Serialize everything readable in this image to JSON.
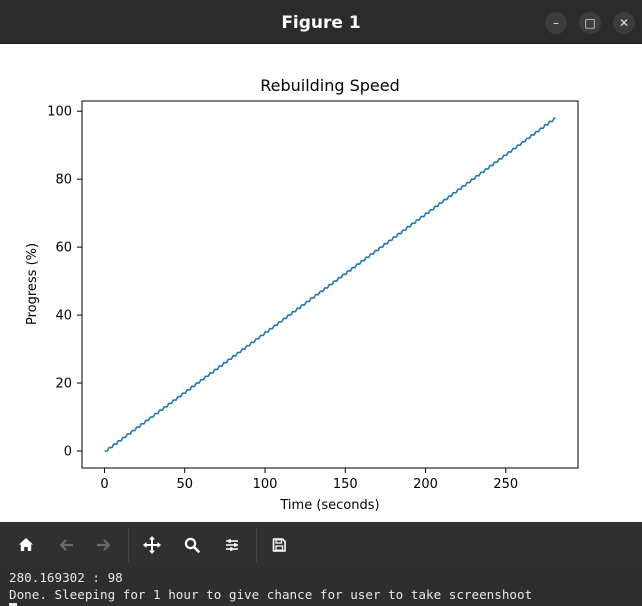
{
  "window": {
    "title": "Figure 1",
    "minimize_glyph": "–",
    "maximize_glyph": "□",
    "close_glyph": "✕"
  },
  "toolbar": {
    "icons": [
      "home-icon",
      "back-arrow-icon",
      "forward-arrow-icon",
      "pan-icon",
      "zoom-icon",
      "configure-subplots-icon",
      "save-icon"
    ],
    "icon_color": "#ffffff",
    "disabled_color": "#6a6a6a"
  },
  "terminal": {
    "line1": "280.169302 : 98",
    "line2": "Done. Sleeping for 1 hour to give chance for user to take screenshoot"
  },
  "chart_data": {
    "type": "line",
    "title": "Rebuilding Speed",
    "xlabel": "Time (seconds)",
    "ylabel": "Progress (%)",
    "xlim": [
      -14,
      295
    ],
    "ylim": [
      -5,
      103
    ],
    "xticks": [
      0,
      50,
      100,
      150,
      200,
      250
    ],
    "yticks": [
      0,
      20,
      40,
      60,
      80,
      100
    ],
    "grid": false,
    "series": [
      {
        "color": "#1f77b4",
        "step_interval_seconds": 2.858,
        "x": [
          0,
          280.17
        ],
        "y": [
          0,
          98
        ]
      }
    ]
  }
}
